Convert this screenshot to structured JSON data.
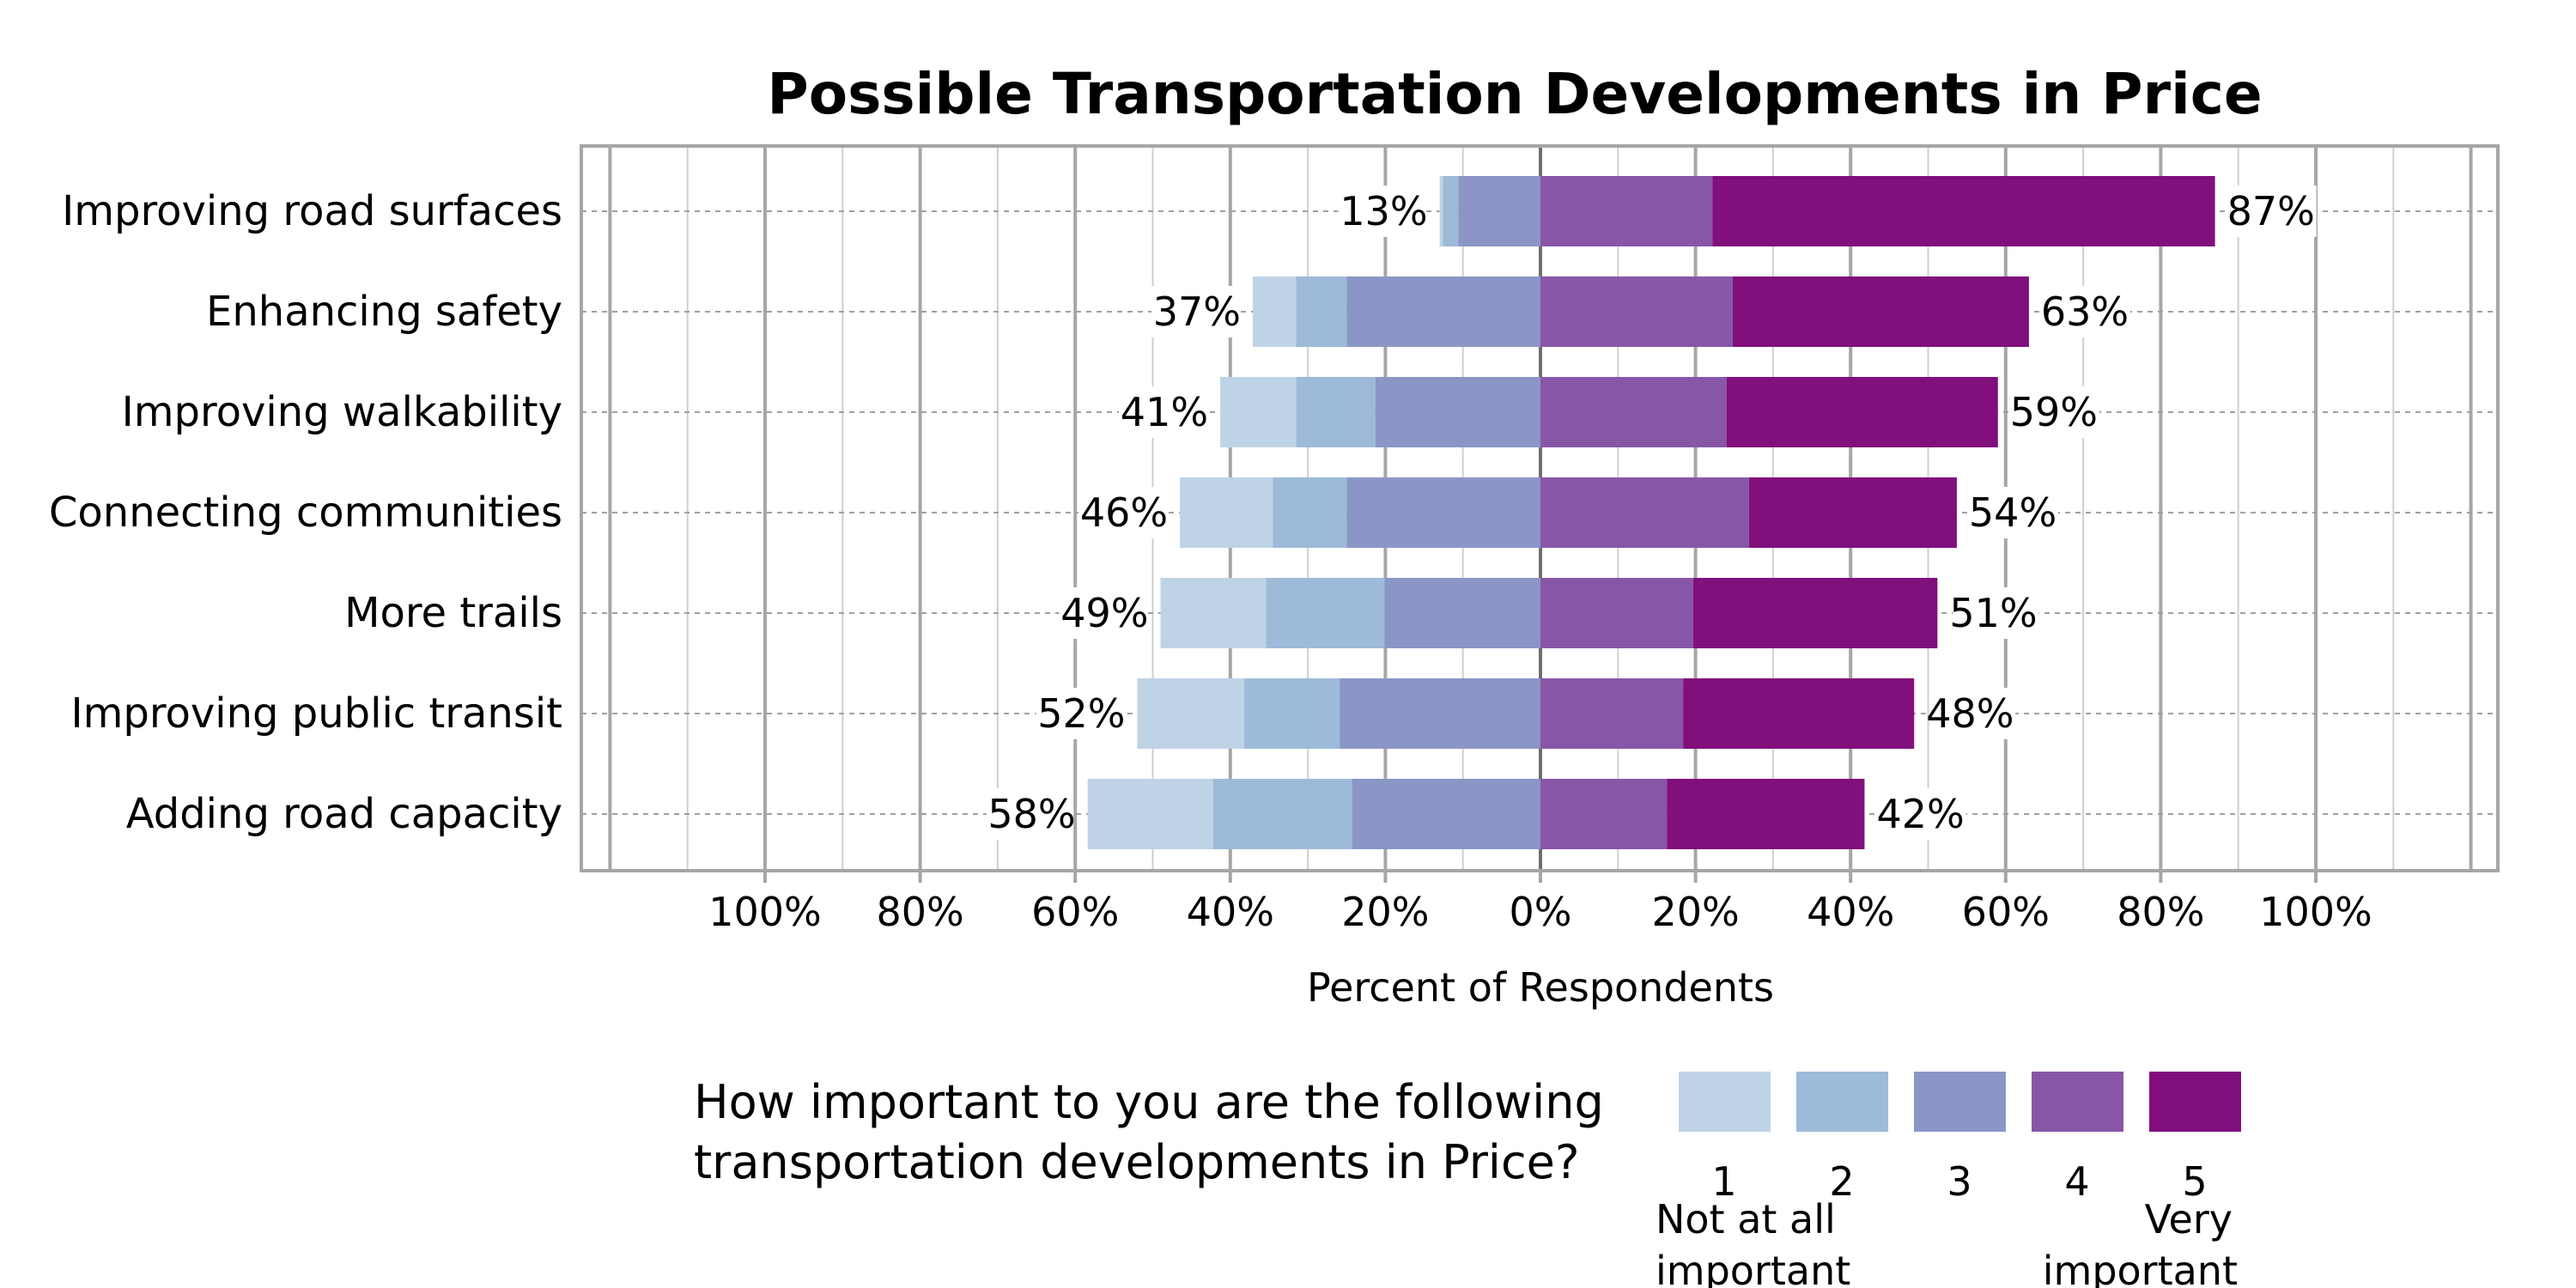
{
  "chart_data": {
    "type": "bar",
    "orientation": "horizontal",
    "stacked": "diverging",
    "title": "Possible Transportation Developments in Price",
    "xlabel": "Percent of Respondents",
    "ylabel": "",
    "xlim": [
      -100,
      100
    ],
    "x_tick_labels": [
      "100%",
      "80%",
      "60%",
      "40%",
      "20%",
      "0%",
      "20%",
      "40%",
      "60%",
      "80%",
      "100%"
    ],
    "x_tick_values": [
      -100,
      -80,
      -60,
      -40,
      -20,
      0,
      20,
      40,
      60,
      80,
      100
    ],
    "grid": true,
    "categories": [
      "Improving road surfaces",
      "Enhancing safety",
      "Improving walkability",
      "Connecting communities",
      "More trails",
      "Improving public transit",
      "Adding road capacity"
    ],
    "series": [
      {
        "name": "1",
        "color": "#bfd3e6",
        "values": [
          0.4,
          5.6,
          9.8,
          12.0,
          13.6,
          13.8,
          16.2
        ]
      },
      {
        "name": "2",
        "color": "#9ebad9",
        "values": [
          2.0,
          6.5,
          10.2,
          9.5,
          15.3,
          12.3,
          17.9
        ]
      },
      {
        "name": "3",
        "color": "#8c96c6",
        "values": [
          10.6,
          25.0,
          21.3,
          25.0,
          20.1,
          25.9,
          24.3
        ]
      },
      {
        "name": "4",
        "color": "#8856a7",
        "values": [
          22.2,
          24.8,
          24.0,
          26.9,
          19.7,
          18.4,
          16.3
        ]
      },
      {
        "name": "5",
        "color": "#810f7c",
        "values": [
          64.8,
          38.2,
          35.0,
          26.8,
          31.5,
          29.8,
          25.5
        ]
      }
    ],
    "negative_totals_labels": [
      "13%",
      "37%",
      "41%",
      "46%",
      "49%",
      "52%",
      "58%"
    ],
    "positive_totals_labels": [
      "87%",
      "63%",
      "59%",
      "54%",
      "51%",
      "48%",
      "42%"
    ],
    "legend": {
      "placement": "bottom",
      "question_lines": [
        "How important to you are the following",
        "transportation developments in Price?"
      ],
      "keys": [
        "1",
        "2",
        "3",
        "4",
        "5"
      ],
      "low_anchor_lines": [
        "Not at all",
        "important"
      ],
      "high_anchor_lines": [
        "Very",
        "important"
      ]
    }
  }
}
